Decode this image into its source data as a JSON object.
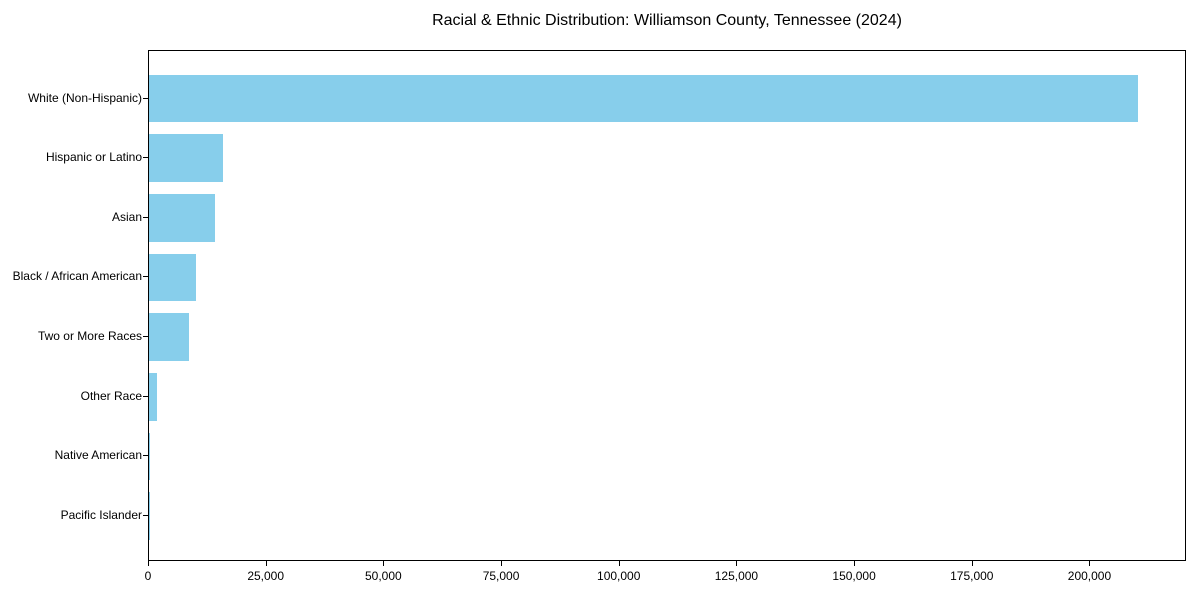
{
  "chart_data": {
    "type": "bar",
    "orientation": "horizontal",
    "title": "Racial & Ethnic Distribution: Williamson County, Tennessee (2024)",
    "categories": [
      "White (Non-Hispanic)",
      "Hispanic or Latino",
      "Asian",
      "Black / African American",
      "Two or More Races",
      "Other Race",
      "Native American",
      "Pacific Islander"
    ],
    "values": [
      210000,
      15800,
      14000,
      10000,
      8500,
      1600,
      100,
      50
    ],
    "xlabel": "",
    "ylabel": "",
    "xlim": [
      0,
      220500
    ],
    "x_ticks": [
      0,
      25000,
      50000,
      75000,
      100000,
      125000,
      150000,
      175000,
      200000
    ],
    "x_tick_labels": [
      "0",
      "25,000",
      "50,000",
      "75,000",
      "100,000",
      "125,000",
      "150,000",
      "175,000",
      "200,000"
    ],
    "grid": false,
    "legend": "none",
    "bar_color": "#87CEEB"
  },
  "colors": {
    "bar_fill": "#87CEEB",
    "axis": "#000000",
    "text": "#000000",
    "background": "#FFFFFF"
  }
}
